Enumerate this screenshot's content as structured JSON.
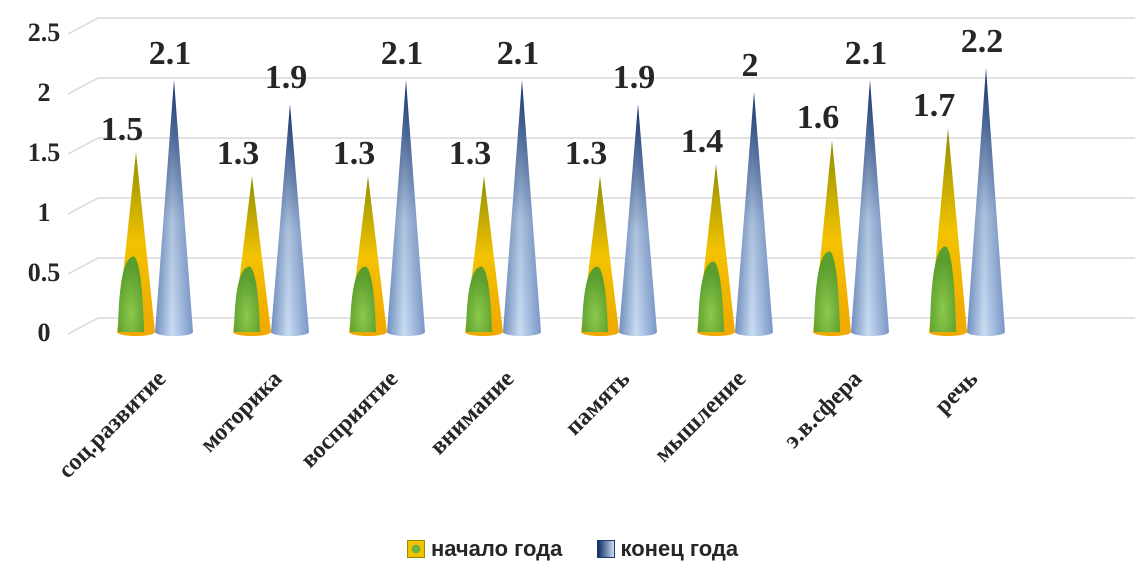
{
  "chart_data": {
    "type": "bar",
    "categories": [
      "соц.развитие",
      "моторика",
      "восприятие",
      "внимание",
      "память",
      "мышление",
      "э.в.сфера",
      "речь"
    ],
    "series": [
      {
        "name": "начало года",
        "values": [
          1.5,
          1.3,
          1.3,
          1.3,
          1.3,
          1.4,
          1.6,
          1.7
        ],
        "labels": [
          "1.5",
          "1.3",
          "1.3",
          "1.3",
          "1.3",
          "1.4",
          "1.6",
          "1.7"
        ]
      },
      {
        "name": "конец года",
        "values": [
          2.1,
          1.9,
          2.1,
          2.1,
          1.9,
          2.0,
          2.1,
          2.2
        ],
        "labels": [
          "2.1",
          "1.9",
          "2.1",
          "2.1",
          "1.9",
          "2",
          "2.1",
          "2.2"
        ]
      }
    ],
    "yticks": [
      "0",
      "0.5",
      "1",
      "1.5",
      "2",
      "2.5"
    ],
    "ylim": [
      0,
      2.5
    ],
    "grid": true,
    "legend_position": "bottom",
    "colors": {
      "start_base": "#f2c200",
      "start_inner": "#6cb33f",
      "end_dark": "#0d2b66",
      "end_light": "#c9dcf2",
      "grid": "#d9d9d9"
    }
  },
  "legend": {
    "start_label": "начало года",
    "end_label": "конец года"
  }
}
